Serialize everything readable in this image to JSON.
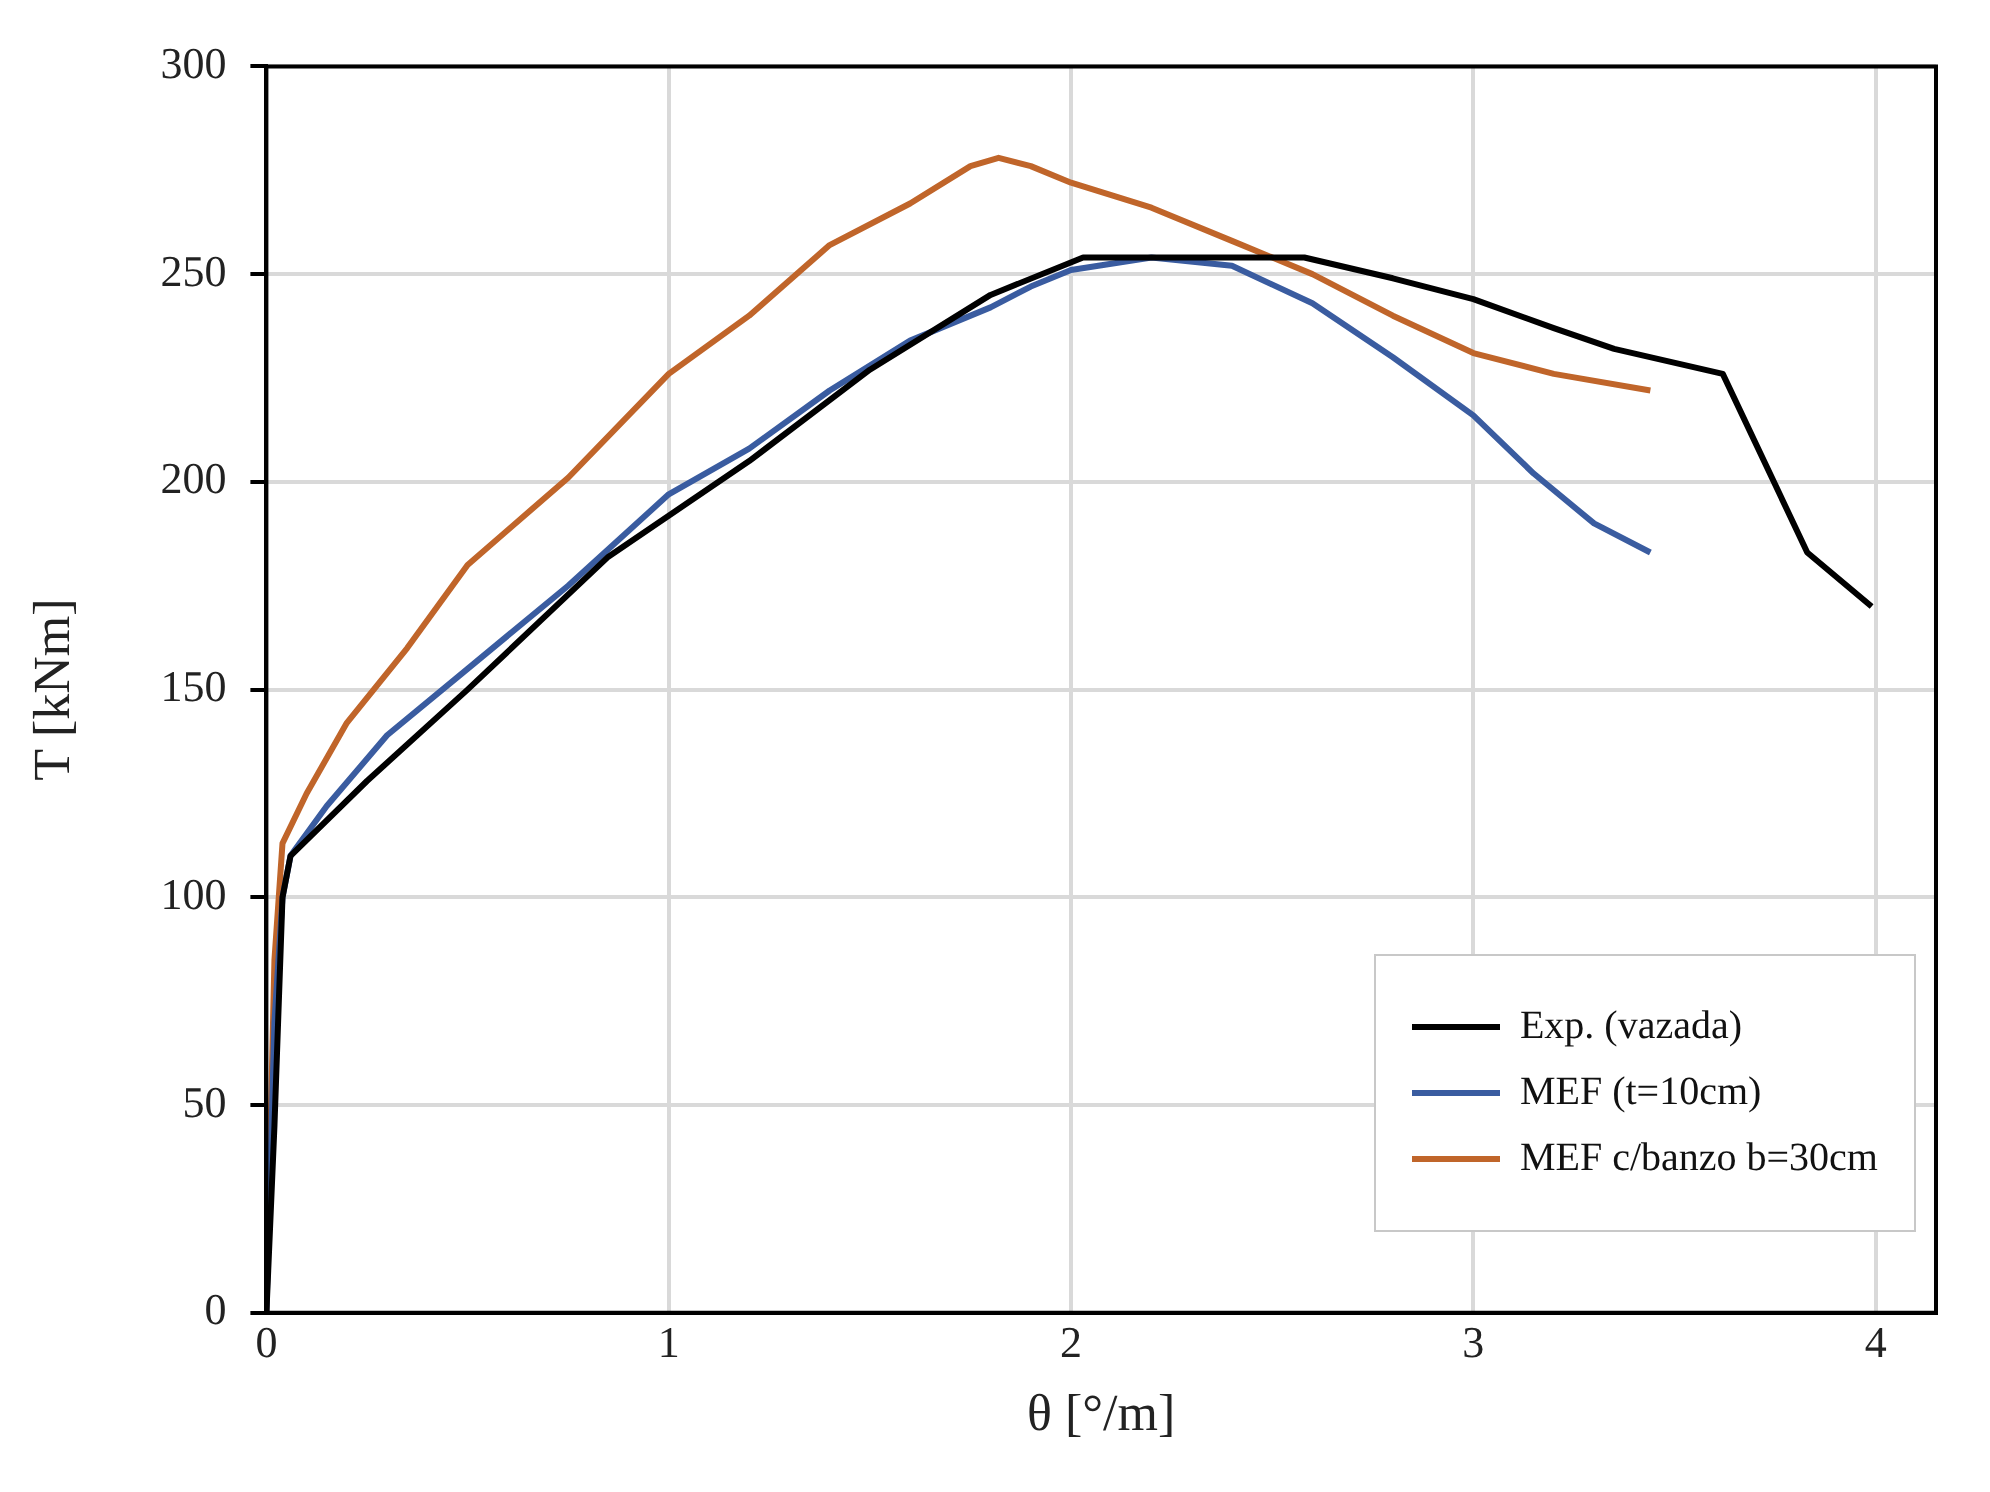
{
  "chart_data": {
    "type": "line",
    "xlabel": "θ [°/m]",
    "ylabel": "T [kNm]",
    "xlim": [
      0,
      4.15
    ],
    "xticks": [
      0,
      1,
      2,
      3,
      4
    ],
    "ylim": [
      0,
      300
    ],
    "yticks": [
      0,
      50,
      100,
      150,
      200,
      250,
      300
    ],
    "grid": true,
    "legend": "bottom right",
    "marker": "none",
    "line_style": "solid",
    "series": [
      {
        "name": "Exp. (vazada)",
        "color": "#000000",
        "x": [
          0,
          0.02,
          0.04,
          0.06,
          0.25,
          0.5,
          0.85,
          1.2,
          1.5,
          1.8,
          2.03,
          2.58,
          2.8,
          3.0,
          3.2,
          3.35,
          3.62,
          3.83,
          3.99
        ],
        "values": [
          0,
          45,
          100,
          110,
          128,
          150,
          182,
          205,
          227,
          245,
          254,
          254,
          249,
          244,
          237,
          232,
          226,
          183,
          170
        ]
      },
      {
        "name": "MEF (t=10cm)",
        "color": "#3a5ca0",
        "x": [
          0,
          0.02,
          0.04,
          0.06,
          0.15,
          0.3,
          0.5,
          0.75,
          1.0,
          1.2,
          1.4,
          1.6,
          1.8,
          1.9,
          2.0,
          2.2,
          2.4,
          2.6,
          2.8,
          3.0,
          3.15,
          3.3,
          3.44
        ],
        "values": [
          0,
          70,
          100,
          110,
          122,
          139,
          155,
          175,
          197,
          208,
          222,
          234,
          242,
          247,
          251,
          254,
          252,
          243,
          230,
          216,
          202,
          190,
          183
        ]
      },
      {
        "name": "MEF c/banzo b=30cm",
        "color": "#c0652a",
        "x": [
          0,
          0.02,
          0.04,
          0.1,
          0.2,
          0.35,
          0.5,
          0.75,
          1.0,
          1.2,
          1.4,
          1.6,
          1.75,
          1.82,
          1.9,
          2.0,
          2.2,
          2.4,
          2.6,
          2.8,
          3.0,
          3.2,
          3.44
        ],
        "values": [
          0,
          85,
          113,
          125,
          142,
          160,
          180,
          201,
          226,
          240,
          257,
          267,
          276,
          278,
          276,
          272,
          266,
          258,
          250,
          240,
          231,
          226,
          222
        ]
      }
    ]
  }
}
